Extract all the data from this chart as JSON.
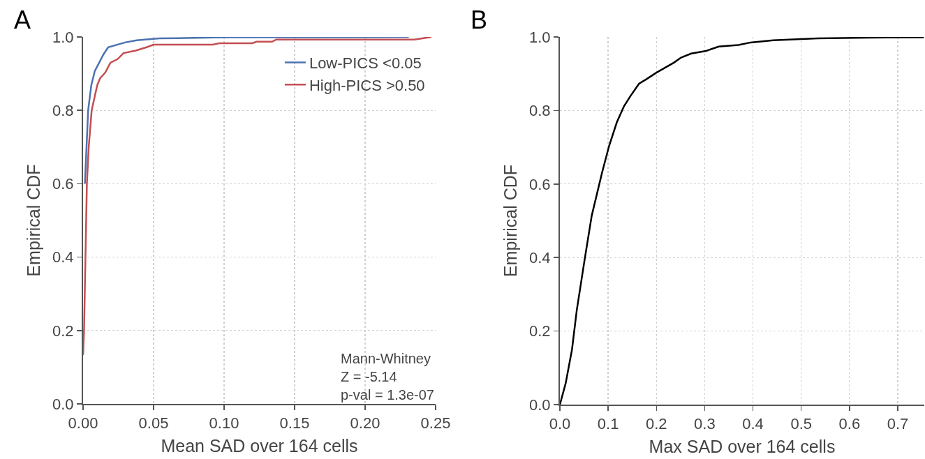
{
  "chart_data": [
    {
      "type": "line",
      "xlabel": "Mean SAD over 164 cells",
      "ylabel": "Empirical CDF",
      "xlim": [
        0,
        0.25
      ],
      "ylim": [
        0,
        1
      ],
      "xticks": [
        {
          "value": 0,
          "label": "0.00"
        },
        {
          "value": 0.05,
          "label": "0.05"
        },
        {
          "value": 0.1,
          "label": "0.10"
        },
        {
          "value": 0.15,
          "label": "0.15"
        },
        {
          "value": 0.2,
          "label": "0.20"
        },
        {
          "value": 0.25,
          "label": "0.25"
        }
      ],
      "yticks": [
        {
          "value": 0,
          "label": "0.0"
        },
        {
          "value": 0.2,
          "label": "0.2"
        },
        {
          "value": 0.4,
          "label": "0.4"
        },
        {
          "value": 0.6,
          "label": "0.6"
        },
        {
          "value": 0.8,
          "label": "0.8"
        },
        {
          "value": 1,
          "label": "1.0"
        }
      ],
      "grid": true,
      "legend": "top right",
      "annotations": [
        "A",
        "Mann-Whitney\nZ = -5.14\np-val = 1.3e-07"
      ],
      "series": [
        {
          "name": "Low-PICS <0.05",
          "color": "#4c72b0",
          "x": [
            0.0013,
            0.0036,
            0.0058,
            0.0083,
            0.0144,
            0.0178,
            0.0297,
            0.038,
            0.054,
            0.1,
            0.231
          ],
          "values": [
            0.6,
            0.8,
            0.868,
            0.907,
            0.952,
            0.972,
            0.985,
            0.991,
            0.996,
            0.999,
            1.0
          ]
        },
        {
          "name": "High-PICS >0.50",
          "color": "#c44e52",
          "x": [
            0,
            0.0007,
            0.0017,
            0.0027,
            0.004,
            0.0061,
            0.01,
            0.012,
            0.0157,
            0.0194,
            0.0246,
            0.0287,
            0.0374,
            0.045,
            0.05,
            0.092,
            0.0965,
            0.12,
            0.123,
            0.134,
            0.137,
            0.235,
            0.247
          ],
          "values": [
            0.133,
            0.2,
            0.4,
            0.6,
            0.7,
            0.8,
            0.868,
            0.887,
            0.903,
            0.93,
            0.94,
            0.956,
            0.963,
            0.972,
            0.979,
            0.979,
            0.983,
            0.983,
            0.987,
            0.987,
            0.993,
            0.993,
            1.0
          ]
        }
      ]
    },
    {
      "type": "line",
      "xlabel": "Max SAD over 164 cells",
      "ylabel": "Empirical CDF",
      "xlim": [
        0,
        0.755
      ],
      "ylim": [
        0,
        1
      ],
      "xticks": [
        {
          "value": 0,
          "label": "0.0"
        },
        {
          "value": 0.1,
          "label": "0.1"
        },
        {
          "value": 0.2,
          "label": "0.2"
        },
        {
          "value": 0.3,
          "label": "0.3"
        },
        {
          "value": 0.4,
          "label": "0.4"
        },
        {
          "value": 0.5,
          "label": "0.5"
        },
        {
          "value": 0.6,
          "label": "0.6"
        },
        {
          "value": 0.7,
          "label": "0.7"
        }
      ],
      "yticks": [
        {
          "value": 0,
          "label": "0.0"
        },
        {
          "value": 0.2,
          "label": "0.2"
        },
        {
          "value": 0.4,
          "label": "0.4"
        },
        {
          "value": 0.6,
          "label": "0.6"
        },
        {
          "value": 0.8,
          "label": "0.8"
        },
        {
          "value": 1,
          "label": "1.0"
        }
      ],
      "grid": true,
      "annotations": [
        "B"
      ],
      "series": [
        {
          "color": "#000000",
          "x": [
            0,
            0.012,
            0.025,
            0.035,
            0.051,
            0.066,
            0.087,
            0.102,
            0.118,
            0.133,
            0.146,
            0.164,
            0.179,
            0.2,
            0.236,
            0.251,
            0.272,
            0.303,
            0.329,
            0.37,
            0.395,
            0.442,
            0.534,
            0.637,
            0.754
          ],
          "values": [
            0,
            0.058,
            0.149,
            0.257,
            0.392,
            0.514,
            0.629,
            0.704,
            0.768,
            0.812,
            0.839,
            0.873,
            0.885,
            0.903,
            0.93,
            0.944,
            0.955,
            0.962,
            0.974,
            0.978,
            0.985,
            0.991,
            0.996,
            0.998,
            0.999
          ]
        }
      ]
    }
  ]
}
